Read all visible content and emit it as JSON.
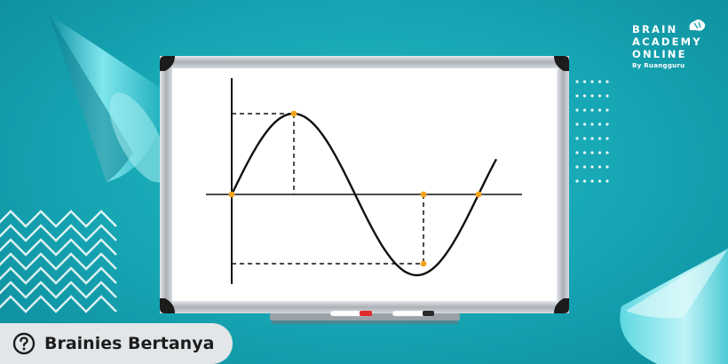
{
  "brand": {
    "line1": "BRAIN",
    "line2": "ACADEMY",
    "line3": "ONLINE",
    "byline": "By Ruangguru"
  },
  "badge": {
    "label": "Brainies Bertanya",
    "icon": "question-circle-icon"
  },
  "whiteboard": {
    "content": "sine-wave-graph",
    "markers": [
      "red-marker",
      "black-marker"
    ]
  },
  "colors": {
    "background": "#16a5b3",
    "board": "#ffffff",
    "frame": "#b9bec3",
    "point": "#f4a41c",
    "badge": "#e3e6e8"
  }
}
